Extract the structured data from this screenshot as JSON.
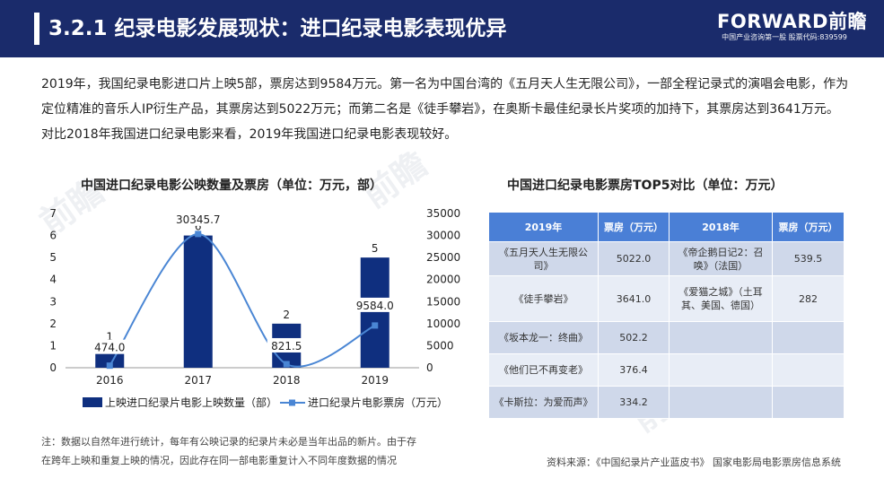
{
  "header": {
    "title": "3.2.1 纪录电影发展现状：进口纪录电影表现优异",
    "logo_main": "FORWARD前瞻",
    "logo_sub": "中国产业咨询第一股  股票代码:839599"
  },
  "intro": "2019年，我国纪录电影进口片上映5部，票房达到9584万元。第一名为中国台湾的《五月天人生无限公司》，一部全程记录式的演唱会电影，作为定位精准的音乐人IP衍生产品，其票房达到5022万元；而第二名是《徒手攀岩》，在奥斯卡最佳纪录长片奖项的加持下，其票房达到3641万元。对比2018年我国进口纪录电影来看，2019年我国进口纪录电影表现较好。",
  "chart_data": {
    "type": "bar",
    "title": "中国进口纪录电影公映数量及票房（单位：万元，部）",
    "categories": [
      "2016",
      "2017",
      "2018",
      "2019"
    ],
    "series": [
      {
        "name": "上映进口纪录片电影上映数量（部）",
        "type": "bar",
        "axis": "left",
        "values": [
          1,
          6,
          2,
          5
        ],
        "labels": [
          "1",
          "6",
          "2",
          "5"
        ],
        "color": "#0f2f7f"
      },
      {
        "name": "进口纪录片电影票房（万元）",
        "type": "line",
        "axis": "right",
        "values": [
          474.0,
          30345.7,
          821.5,
          9584.0
        ],
        "labels": [
          "474.0",
          "30345.7",
          "821.5",
          "9584.0"
        ],
        "color": "#4a86d4"
      }
    ],
    "y_left": {
      "range": [
        0,
        7
      ],
      "ticks": [
        "0",
        "1",
        "2",
        "3",
        "4",
        "5",
        "6",
        "7"
      ]
    },
    "y_right": {
      "range": [
        0,
        35000
      ],
      "ticks": [
        "0",
        "5000",
        "10000",
        "15000",
        "20000",
        "25000",
        "30000",
        "35000"
      ]
    },
    "grid": false,
    "legend": "bottom"
  },
  "table": {
    "title": "中国进口纪录电影票房TOP5对比（单位：万元）",
    "headers": [
      "2019年",
      "票房（万元）",
      "2018年",
      "票房（万元）"
    ],
    "rows": [
      [
        "《五月天人生无限公司》",
        "5022.0",
        "《帝企鹅日记2：召唤》（法国）",
        "539.5"
      ],
      [
        "《徒手攀岩》",
        "3641.0",
        "《爱猫之城》（土耳其、美国、德国）",
        "282"
      ],
      [
        "《坂本龙一：终曲》",
        "502.2",
        "",
        ""
      ],
      [
        "《他们已不再变老》",
        "376.4",
        "",
        ""
      ],
      [
        "《卡斯拉：为爱而声》",
        "334.2",
        "",
        ""
      ]
    ]
  },
  "footer": {
    "note_line1": "注：数据以自然年进行统计，每年有公映记录的纪录片未必是当年出品的新片。由于存",
    "note_line2": "在跨年上映和重复上映的情况，因此存在同一部电影重复计入不同年度数据的情况",
    "source": "资料来源：《中国纪录片产业蓝皮书》 国家电影局电影票房信息系统"
  },
  "colors": {
    "header_bg": "#1a2b6b",
    "bar": "#0f2f7f",
    "line": "#4a86d4",
    "table_header": "#4a7fd6"
  }
}
